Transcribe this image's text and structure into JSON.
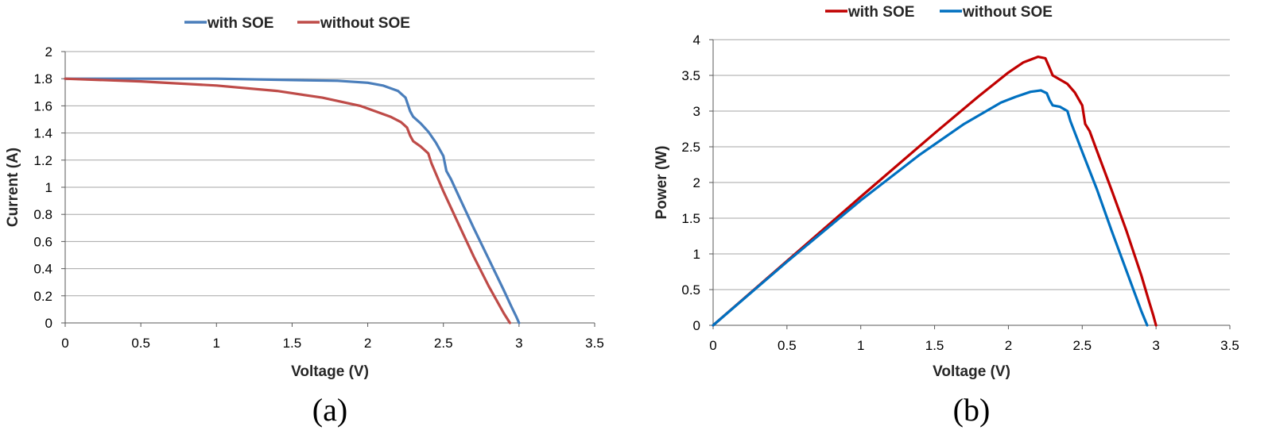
{
  "chart_data": [
    {
      "type": "line",
      "panel_label": "(a)",
      "xlabel": "Voltage (V)",
      "ylabel": "Current (A)",
      "xlim": [
        0,
        3.5
      ],
      "ylim": [
        0,
        2
      ],
      "xticks": [
        "0",
        "0.5",
        "1",
        "1.5",
        "2",
        "2.5",
        "3",
        "3.5"
      ],
      "yticks": [
        "0",
        "0.2",
        "0.4",
        "0.6",
        "0.8",
        "1",
        "1.2",
        "1.4",
        "1.6",
        "1.8",
        "2"
      ],
      "grid": true,
      "legend_position": "top",
      "series": [
        {
          "name": "with SOE",
          "color": "#4a7ebb",
          "x": [
            0,
            0.5,
            1.0,
            1.5,
            1.8,
            2.0,
            2.1,
            2.2,
            2.25,
            2.28,
            2.3,
            2.35,
            2.4,
            2.45,
            2.5,
            2.52,
            2.55,
            2.6,
            2.7,
            2.8,
            2.9,
            2.95,
            2.98,
            3.0
          ],
          "y": [
            1.8,
            1.8,
            1.8,
            1.79,
            1.785,
            1.77,
            1.75,
            1.71,
            1.66,
            1.56,
            1.52,
            1.47,
            1.41,
            1.33,
            1.23,
            1.12,
            1.06,
            0.94,
            0.7,
            0.47,
            0.24,
            0.12,
            0.05,
            0.0
          ]
        },
        {
          "name": "without SOE",
          "color": "#be4b48",
          "x": [
            0,
            0.5,
            1.0,
            1.4,
            1.7,
            1.95,
            2.05,
            2.15,
            2.22,
            2.26,
            2.28,
            2.3,
            2.35,
            2.4,
            2.42,
            2.5,
            2.6,
            2.7,
            2.8,
            2.9,
            2.94
          ],
          "y": [
            1.8,
            1.78,
            1.75,
            1.71,
            1.66,
            1.6,
            1.56,
            1.52,
            1.48,
            1.44,
            1.38,
            1.34,
            1.3,
            1.25,
            1.18,
            0.97,
            0.73,
            0.49,
            0.27,
            0.07,
            0.0
          ]
        }
      ]
    },
    {
      "type": "line",
      "panel_label": "(b)",
      "xlabel": "Voltage (V)",
      "ylabel": "Power (W)",
      "xlim": [
        0,
        3.5
      ],
      "ylim": [
        0,
        4
      ],
      "xticks": [
        "0",
        "0.5",
        "1",
        "1.5",
        "2",
        "2.5",
        "3",
        "3.5"
      ],
      "yticks": [
        "0",
        "0.5",
        "1",
        "1.5",
        "2",
        "2.5",
        "3",
        "3.5",
        "4"
      ],
      "grid": true,
      "legend_position": "top",
      "series": [
        {
          "name": "with SOE",
          "color": "#c00000",
          "x": [
            0,
            0.5,
            1.0,
            1.5,
            1.8,
            2.0,
            2.1,
            2.2,
            2.25,
            2.28,
            2.3,
            2.35,
            2.4,
            2.45,
            2.5,
            2.52,
            2.55,
            2.6,
            2.7,
            2.8,
            2.9,
            2.95,
            2.98,
            3.0
          ],
          "y": [
            0,
            0.9,
            1.8,
            2.69,
            3.21,
            3.54,
            3.68,
            3.76,
            3.74,
            3.6,
            3.5,
            3.44,
            3.38,
            3.26,
            3.08,
            2.82,
            2.72,
            2.44,
            1.89,
            1.32,
            0.7,
            0.35,
            0.15,
            0.0
          ]
        },
        {
          "name": "without SOE",
          "color": "#0070c0",
          "x": [
            0,
            0.5,
            1.0,
            1.4,
            1.7,
            1.95,
            2.05,
            2.15,
            2.22,
            2.26,
            2.28,
            2.3,
            2.35,
            2.4,
            2.42,
            2.5,
            2.6,
            2.7,
            2.8,
            2.9,
            2.94
          ],
          "y": [
            0,
            0.89,
            1.75,
            2.39,
            2.82,
            3.12,
            3.2,
            3.27,
            3.29,
            3.25,
            3.15,
            3.08,
            3.06,
            3.0,
            2.86,
            2.43,
            1.9,
            1.32,
            0.76,
            0.2,
            0.0
          ]
        }
      ]
    }
  ]
}
